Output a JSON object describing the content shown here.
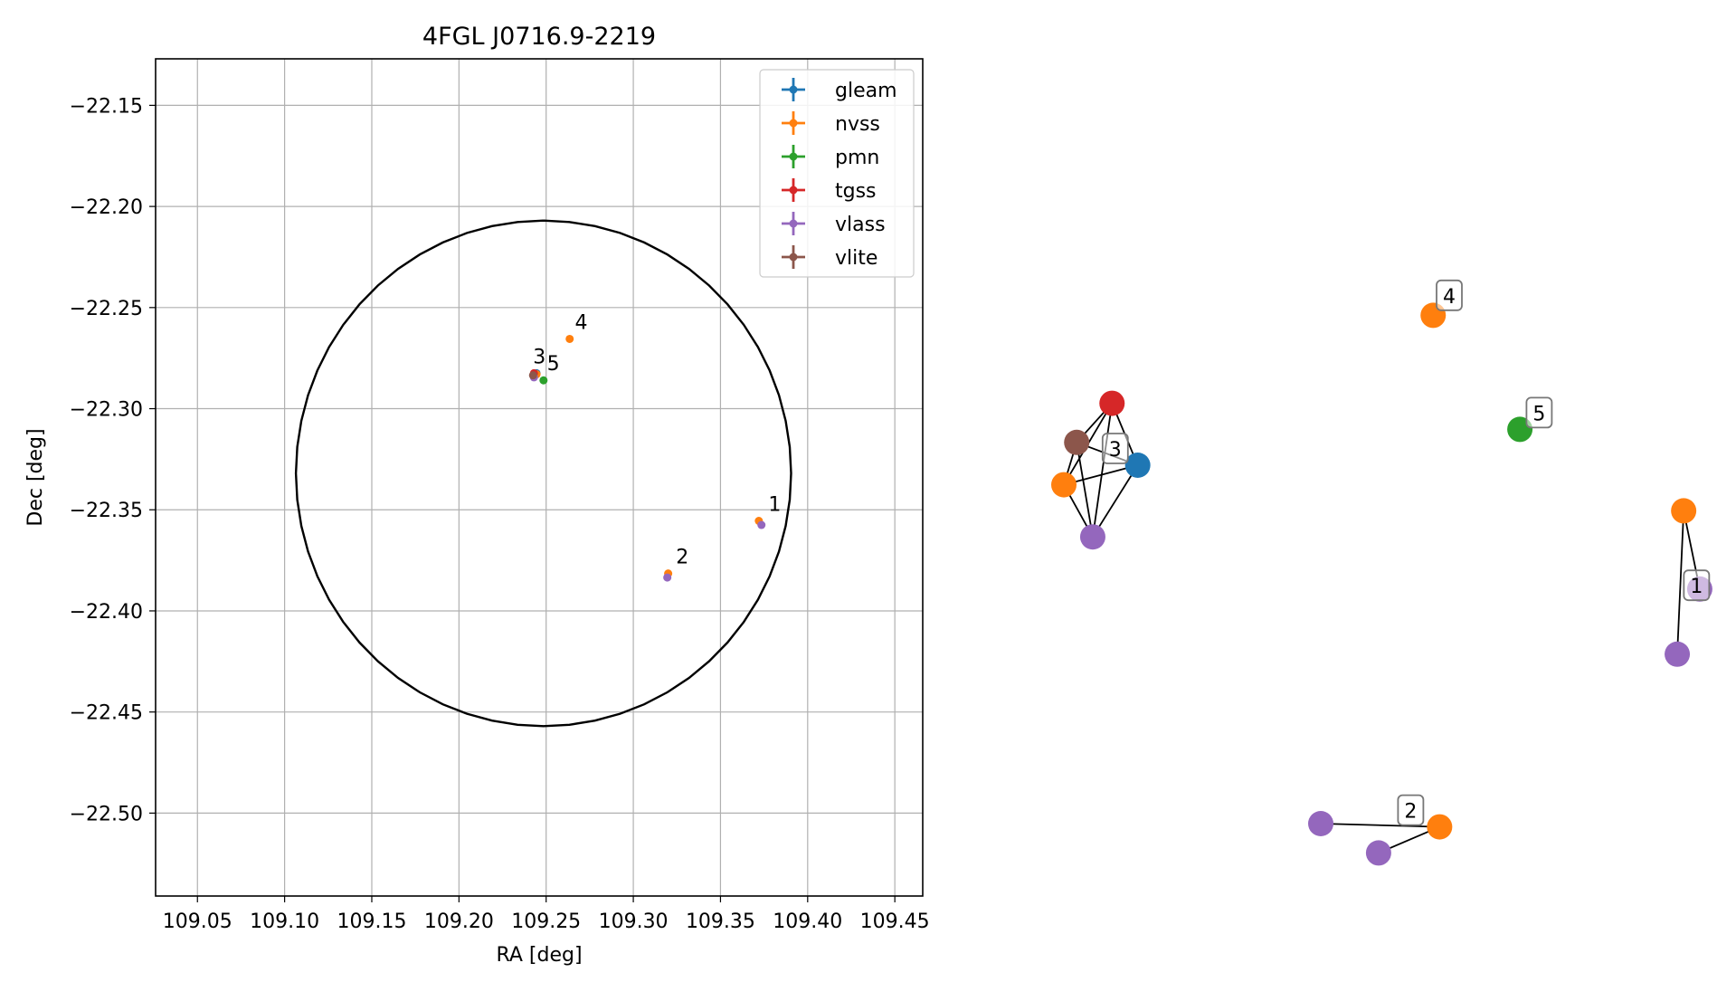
{
  "colors": {
    "gleam": "#1f77b4",
    "nvss": "#ff7f0e",
    "pmn": "#2ca02c",
    "tgss": "#d62728",
    "vlass": "#9467bd",
    "vlite": "#8c564b",
    "grid": "#b0b0b0",
    "axis": "#000000"
  },
  "chart_data": [
    {
      "type": "scatter",
      "title": "4FGL J0716.9-2219",
      "xlabel": "RA [deg]",
      "ylabel": "Dec [deg]",
      "xlim": [
        109.026,
        109.466
      ],
      "ylim": [
        -22.541,
        -22.127
      ],
      "grid": true,
      "legend_position": "top-right",
      "x_ticks": [
        109.05,
        109.1,
        109.15,
        109.2,
        109.25,
        109.3,
        109.35,
        109.4,
        109.45
      ],
      "x_tick_labels": [
        "109.05",
        "109.10",
        "109.15",
        "109.20",
        "109.25",
        "109.30",
        "109.35",
        "109.40",
        "109.45"
      ],
      "y_ticks": [
        -22.15,
        -22.2,
        -22.25,
        -22.3,
        -22.35,
        -22.4,
        -22.45,
        -22.5
      ],
      "y_tick_labels": [
        "−22.15",
        "−22.20",
        "−22.25",
        "−22.30",
        "−22.35",
        "−22.40",
        "−22.45",
        "−22.50"
      ],
      "series": [
        {
          "name": "gleam",
          "points": [
            {
              "x": 109.2445,
              "y": -22.2825
            }
          ]
        },
        {
          "name": "nvss",
          "points": [
            {
              "x": 109.2635,
              "y": -22.2655
            },
            {
              "x": 109.2445,
              "y": -22.283
            },
            {
              "x": 109.372,
              "y": -22.3555
            },
            {
              "x": 109.32,
              "y": -22.3815
            }
          ]
        },
        {
          "name": "pmn",
          "points": [
            {
              "x": 109.2485,
              "y": -22.286
            }
          ]
        },
        {
          "name": "tgss",
          "points": [
            {
              "x": 109.243,
              "y": -22.2825
            }
          ]
        },
        {
          "name": "vlass",
          "points": [
            {
              "x": 109.243,
              "y": -22.2845
            },
            {
              "x": 109.3735,
              "y": -22.3575
            },
            {
              "x": 109.3195,
              "y": -22.3835
            }
          ]
        },
        {
          "name": "vlite",
          "points": [
            {
              "x": 109.2425,
              "y": -22.2835
            }
          ]
        }
      ],
      "annotations": [
        {
          "text": "1",
          "x": 109.3775,
          "y": -22.3505
        },
        {
          "text": "2",
          "x": 109.3245,
          "y": -22.3765
        },
        {
          "text": "3",
          "x": 109.2425,
          "y": -22.2775
        },
        {
          "text": "4",
          "x": 109.2665,
          "y": -22.2605
        },
        {
          "text": "5",
          "x": 109.2505,
          "y": -22.281
        }
      ],
      "circle": {
        "center_ra": 109.2485,
        "center_dec": -22.332,
        "radius_dec": 0.125,
        "radius_ra_deg": 0.142
      }
    },
    {
      "type": "graph",
      "groups": [
        {
          "label": "1",
          "label_at": {
            "x": 0.985,
            "y": 0.535
          },
          "nodes": [
            {
              "series": "nvss",
              "x": 0.965,
              "y": 0.42
            },
            {
              "series": "vlass",
              "x": 0.99,
              "y": 0.54
            },
            {
              "series": "vlass",
              "x": 0.955,
              "y": 0.64
            }
          ],
          "edges": [
            [
              0,
              1
            ],
            [
              0,
              2
            ]
          ]
        },
        {
          "label": "2",
          "label_at": {
            "x": 0.54,
            "y": 0.88
          },
          "nodes": [
            {
              "series": "vlass",
              "x": 0.4,
              "y": 0.9
            },
            {
              "series": "nvss",
              "x": 0.585,
              "y": 0.905
            },
            {
              "series": "vlass",
              "x": 0.49,
              "y": 0.945
            }
          ],
          "edges": [
            [
              0,
              1
            ],
            [
              1,
              2
            ]
          ]
        },
        {
          "label": "3",
          "label_at": {
            "x": 0.08,
            "y": 0.325
          },
          "nodes": [
            {
              "series": "tgss",
              "x": 0.075,
              "y": 0.255
            },
            {
              "series": "vlite",
              "x": 0.02,
              "y": 0.315
            },
            {
              "series": "gleam",
              "x": 0.115,
              "y": 0.35
            },
            {
              "series": "nvss",
              "x": 0.0,
              "y": 0.38
            },
            {
              "series": "vlass",
              "x": 0.045,
              "y": 0.46
            }
          ],
          "edges": [
            [
              0,
              1
            ],
            [
              0,
              2
            ],
            [
              0,
              3
            ],
            [
              0,
              4
            ],
            [
              1,
              2
            ],
            [
              1,
              3
            ],
            [
              1,
              4
            ],
            [
              2,
              3
            ],
            [
              2,
              4
            ],
            [
              3,
              4
            ]
          ]
        },
        {
          "label": "4",
          "label_at": {
            "x": 0.6,
            "y": 0.09
          },
          "nodes": [
            {
              "series": "nvss",
              "x": 0.575,
              "y": 0.12
            }
          ],
          "edges": []
        },
        {
          "label": "5",
          "label_at": {
            "x": 0.74,
            "y": 0.27
          },
          "nodes": [
            {
              "series": "pmn",
              "x": 0.71,
              "y": 0.295
            }
          ],
          "edges": []
        }
      ]
    }
  ]
}
